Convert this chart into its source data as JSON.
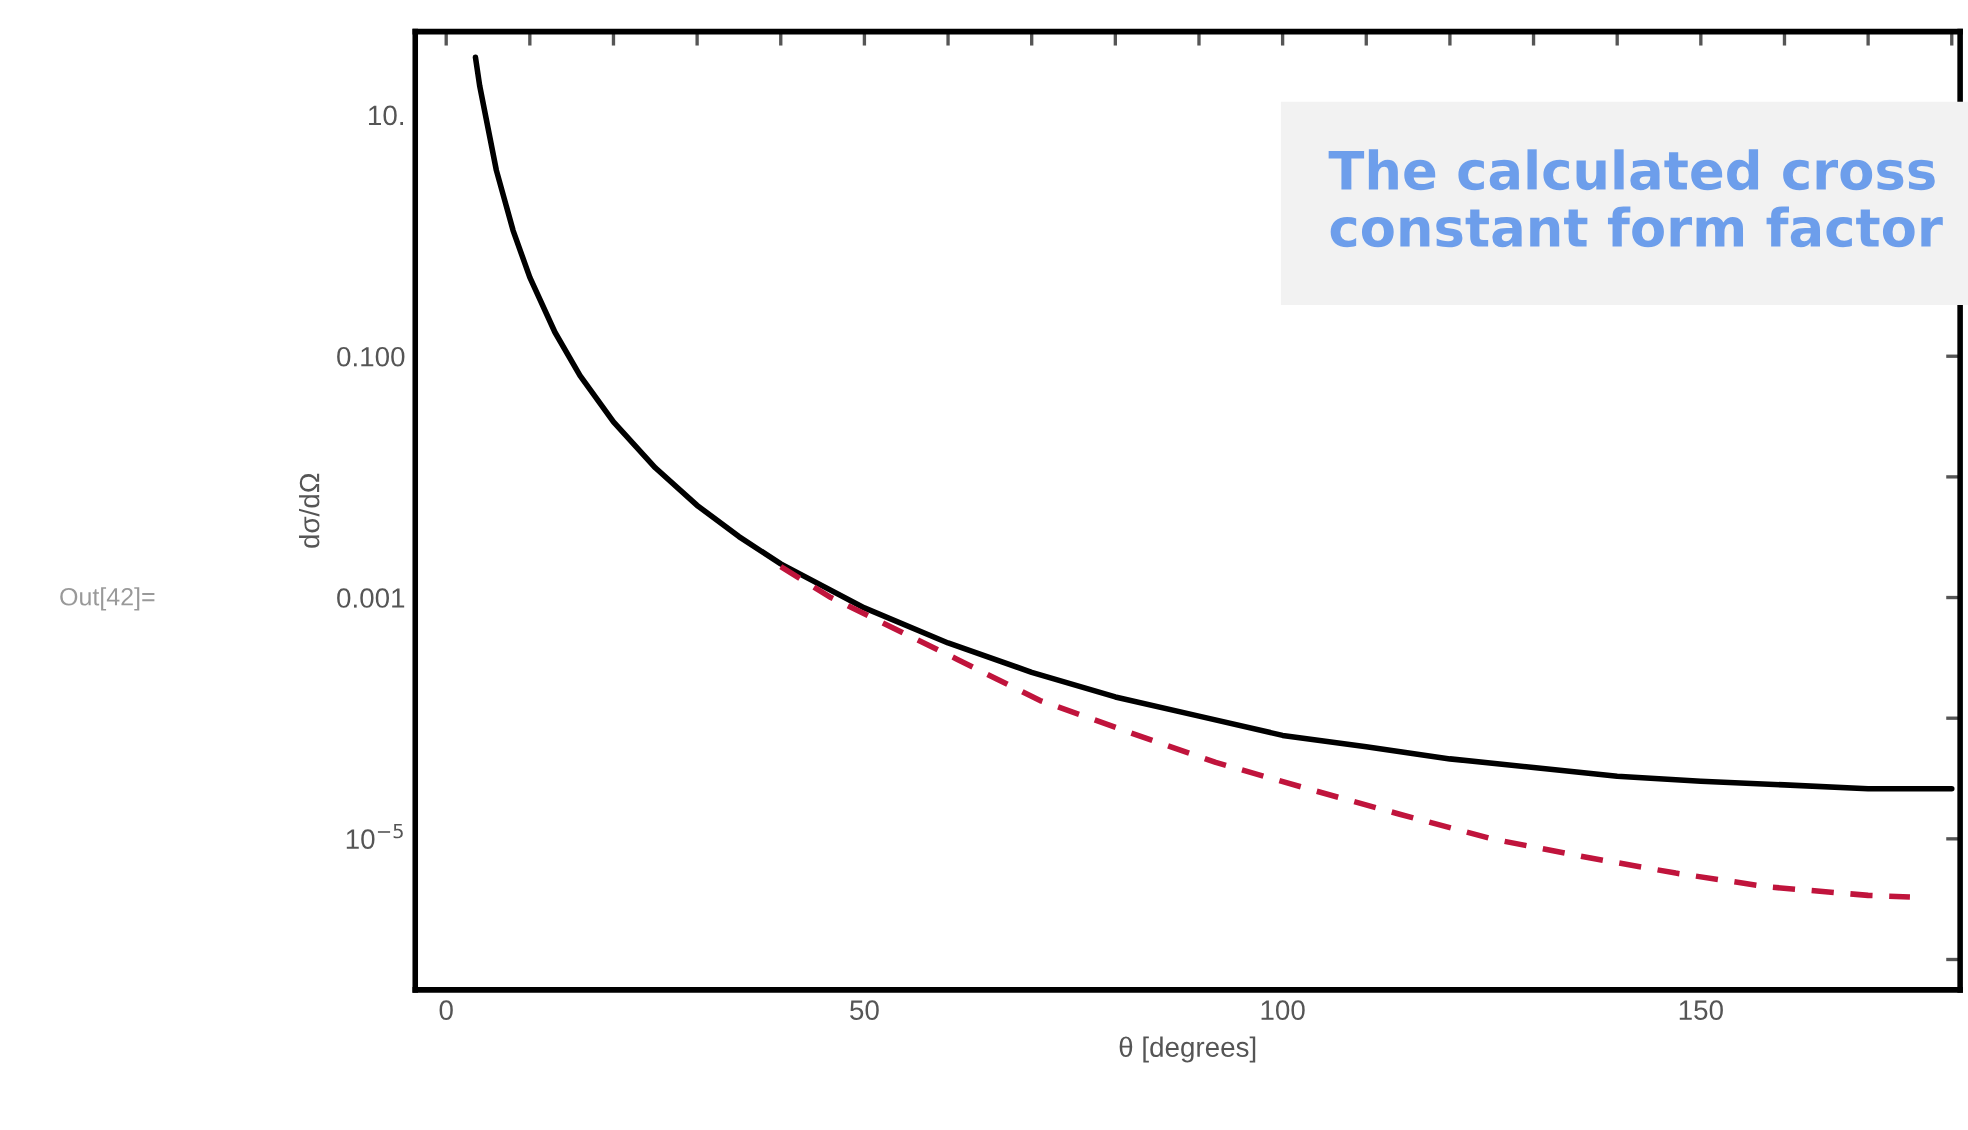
{
  "chart_data": {
    "type": "line",
    "xlabel": "θ [degrees]",
    "ylabel": "dσ/dΩ",
    "log": "y",
    "xlim": [
      -3.7,
      181
    ],
    "ylim": [
      5.6e-07,
      49
    ],
    "xticks": [
      0,
      50,
      100,
      150,
      {
        "value": 10,
        "label": null
      },
      {
        "value": 20,
        "label": null
      },
      {
        "value": 30,
        "label": null
      },
      {
        "value": 40,
        "label": null
      },
      {
        "value": 60,
        "label": null
      },
      {
        "value": 70,
        "label": null
      },
      {
        "value": 80,
        "label": null
      },
      {
        "value": 90,
        "label": null
      },
      {
        "value": 110,
        "label": null
      },
      {
        "value": 120,
        "label": null
      },
      {
        "value": 130,
        "label": null
      },
      {
        "value": 140,
        "label": null
      },
      {
        "value": 160,
        "label": null
      },
      {
        "value": 170,
        "label": null
      },
      {
        "value": 180,
        "label": null
      }
    ],
    "yticks": [
      {
        "value": 10,
        "label": "10."
      },
      {
        "value": 0.1,
        "label": "0.100"
      },
      {
        "value": 0.001,
        "label": "0.001"
      },
      {
        "value": 1e-05,
        "label": "10$^{−5}$"
      },
      {
        "value": 1,
        "label": null
      },
      {
        "value": 0.01,
        "label": null
      },
      {
        "value": 0.0001,
        "label": null
      },
      {
        "value": 1e-06,
        "label": null
      }
    ],
    "grid": false,
    "annotations": [
      "Out[42]=",
      "The calculated cross\nconstant form factor"
    ],
    "series": [
      {
        "color": "#000000",
        "line_style": "solid",
        "x": [
          3.5,
          4,
          6,
          8,
          10,
          13,
          16,
          20,
          25,
          30,
          35,
          40,
          50,
          60,
          70,
          80,
          90,
          100,
          110,
          120,
          130,
          140,
          150,
          160,
          170,
          180
        ],
        "values": [
          30,
          17.5,
          3.47,
          1.1,
          0.45,
          0.158,
          0.069,
          0.0286,
          0.0119,
          0.0058,
          0.0032,
          0.0019,
          0.00082,
          0.00042,
          0.00024,
          0.00015,
          0.000104,
          7.2e-05,
          5.8e-05,
          4.6e-05,
          3.9e-05,
          3.3e-05,
          3e-05,
          2.8e-05,
          2.6e-05,
          2.6e-05
        ]
      },
      {
        "color": "#c0143c",
        "line_style": "dashed",
        "x": [
          40,
          46,
          61,
          71,
          82,
          92,
          103,
          114,
          125,
          136,
          147,
          158,
          170,
          175
        ],
        "values": [
          0.0018,
          0.001,
          0.00031,
          0.00014,
          7.5e-05,
          4.3e-05,
          2.6e-05,
          1.6e-05,
          1e-05,
          7.1e-06,
          5.2e-06,
          4e-06,
          3.4e-06,
          3.3e-06
        ]
      }
    ]
  }
}
